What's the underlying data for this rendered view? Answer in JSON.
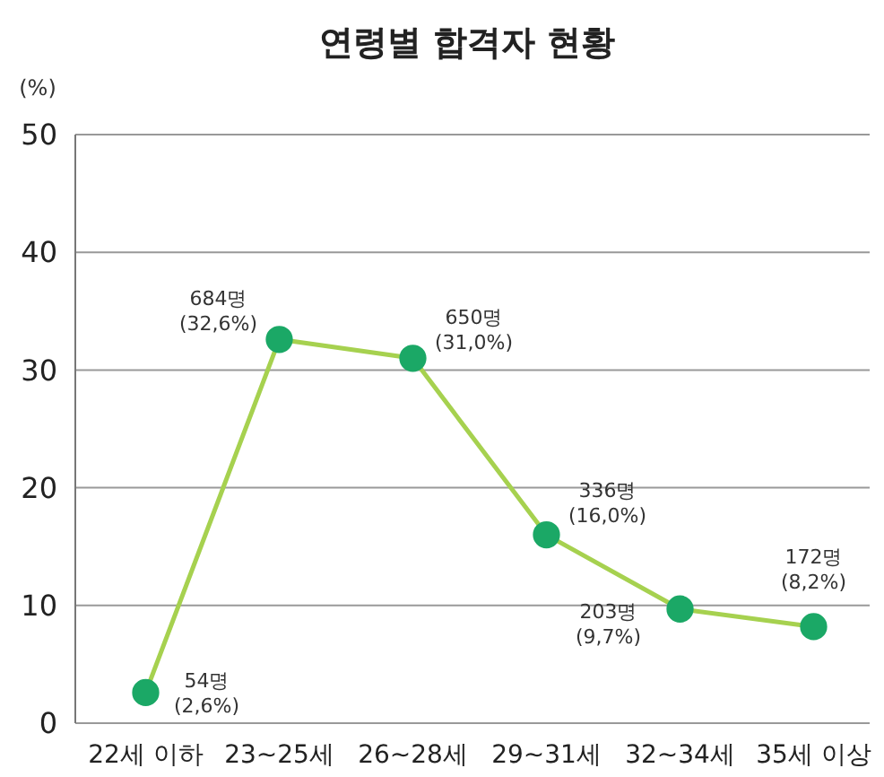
{
  "chart_data": {
    "type": "line",
    "title": "연령별 합격자 현황",
    "ylabel": "(%)",
    "categories": [
      "22세 이하",
      "23~25세",
      "26~28세",
      "29~31세",
      "32~34세",
      "35세 이상"
    ],
    "series": [
      {
        "color": "#a6d14f",
        "values": [
          2.6,
          32.6,
          31.0,
          16.0,
          9.7,
          8.2
        ],
        "value_labels": [
          "54명\n(2,6%)",
          "684명\n(32,6%)",
          "650명\n(31,0%)",
          "336명\n(16,0%)",
          "203명\n(9,7%)",
          "172명\n(8,2%)"
        ]
      }
    ],
    "ylim": [
      0,
      50
    ],
    "yticks": [
      0,
      10,
      20,
      30,
      40,
      50
    ],
    "grid": "y",
    "marker": "circle"
  }
}
